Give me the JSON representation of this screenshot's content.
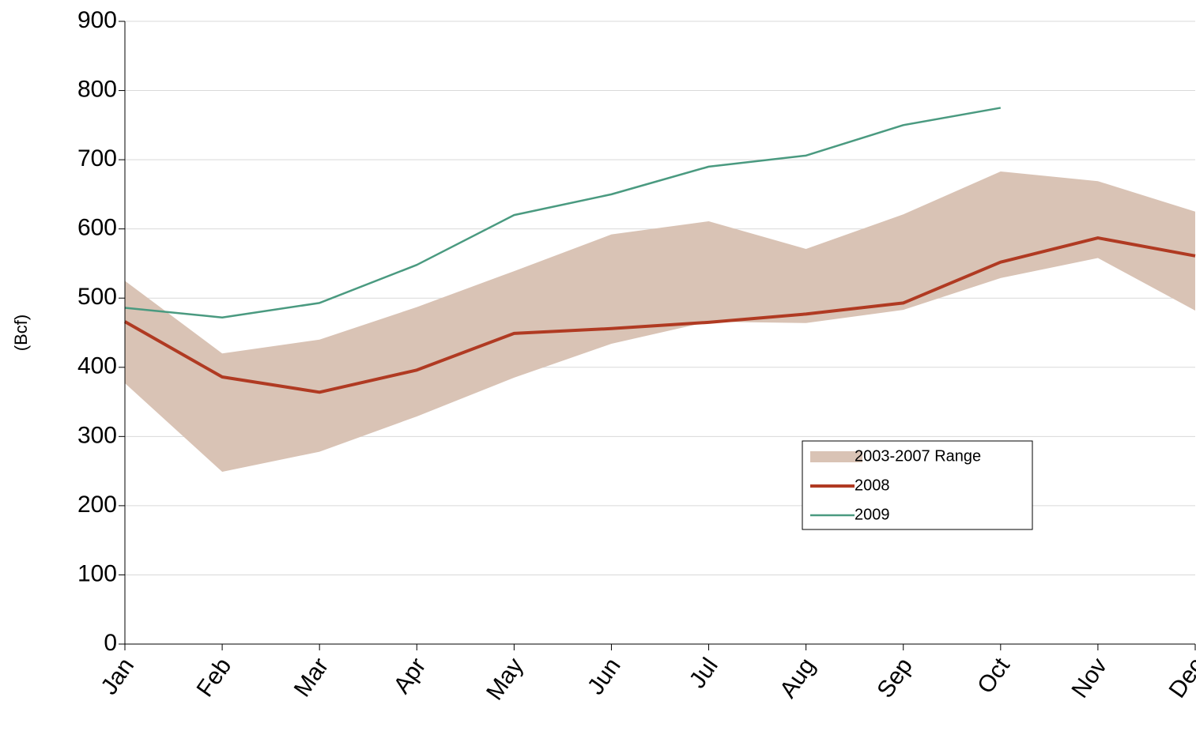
{
  "chart_data": {
    "type": "line",
    "y_label": "(Bcf)",
    "categories": [
      "Jan",
      "Feb",
      "Mar",
      "Apr",
      "May",
      "Jun",
      "Jul",
      "Aug",
      "Sep",
      "Oct",
      "Nov",
      "Dec"
    ],
    "ylim": [
      0,
      900
    ],
    "yticks": [
      0,
      100,
      200,
      300,
      400,
      500,
      600,
      700,
      800,
      900
    ],
    "grid": true,
    "legend": "center-right",
    "series": [
      {
        "name": "2003-2007 Range",
        "color": "#d9c3b5",
        "high": [
          525,
          420,
          440,
          487,
          539,
          592,
          611,
          571,
          621,
          683,
          669,
          625
        ],
        "low": [
          377,
          249,
          278,
          329,
          385,
          434,
          466,
          464,
          483,
          529,
          558,
          482
        ]
      },
      {
        "name": "2008",
        "color": "#b03a22",
        "width": 4,
        "values": [
          466,
          386,
          364,
          396,
          449,
          456,
          465,
          477,
          493,
          552,
          587,
          561
        ]
      },
      {
        "name": "2009",
        "color": "#4a9a80",
        "width": 2.5,
        "values": [
          486,
          472,
          493,
          548,
          620,
          650,
          690,
          706,
          750,
          775,
          null,
          null
        ]
      }
    ]
  }
}
